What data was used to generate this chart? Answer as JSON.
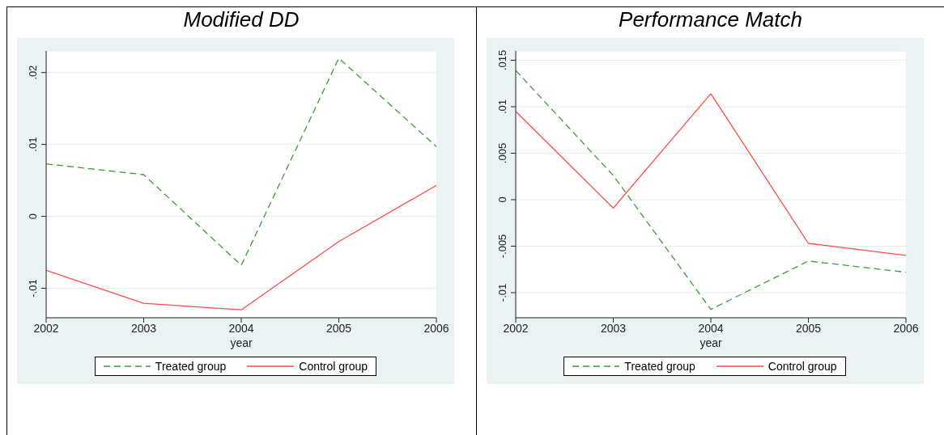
{
  "chart_data": [
    {
      "type": "line",
      "title": "Modified DD",
      "xlabel": "year",
      "x": [
        2002,
        2003,
        2004,
        2005,
        2006
      ],
      "series": [
        {
          "name": "Treated group",
          "color": "#3f9a3a",
          "line_style": "dashed",
          "values": [
            0.0073,
            0.0058,
            -0.0068,
            0.022,
            0.0097
          ]
        },
        {
          "name": "Control group",
          "color": "#ff4a4a",
          "line_style": "solid",
          "values": [
            -0.0075,
            -0.0121,
            -0.013,
            -0.0035,
            0.0043
          ]
        }
      ],
      "xlim": [
        2002,
        2006
      ],
      "xticks": [
        2002,
        2003,
        2004,
        2005,
        2006
      ],
      "ylim": [
        -0.0141,
        0.023
      ],
      "yticks": [
        {
          "value": -0.01,
          "label": "-.01"
        },
        0,
        {
          "value": 0.01,
          "label": ".01"
        },
        {
          "value": 0.02,
          "label": ".02"
        }
      ],
      "grid": "y",
      "legend": "bottom"
    },
    {
      "type": "line",
      "title": "Performance Match",
      "xlabel": "year",
      "x": [
        2002,
        2003,
        2004,
        2005,
        2006
      ],
      "series": [
        {
          "name": "Treated group",
          "color": "#3f9a3a",
          "line_style": "dashed",
          "values": [
            0.0139,
            0.0026,
            -0.0118,
            -0.0066,
            -0.0078
          ]
        },
        {
          "name": "Control group",
          "color": "#ff4a4a",
          "line_style": "solid",
          "values": [
            0.0095,
            -0.0009,
            0.0114,
            -0.0047,
            -0.006
          ]
        }
      ],
      "xlim": [
        2002,
        2006
      ],
      "xticks": [
        2002,
        2003,
        2004,
        2005,
        2006
      ],
      "ylim": [
        -0.0127,
        0.016
      ],
      "yticks": [
        {
          "value": -0.01,
          "label": "-.01"
        },
        {
          "value": -0.005,
          "label": "-.005"
        },
        0,
        {
          "value": 0.005,
          "label": ".005"
        },
        {
          "value": 0.01,
          "label": ".01"
        },
        {
          "value": 0.015,
          "label": ".015"
        }
      ],
      "grid": "y",
      "legend": "bottom"
    }
  ]
}
